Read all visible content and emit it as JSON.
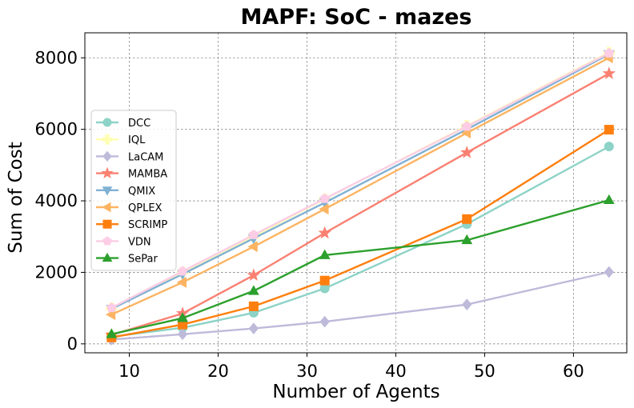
{
  "chart_data": {
    "type": "line",
    "title": "MAPF: SoC - mazes",
    "xlabel": "Number of Agents",
    "ylabel": "Sum of Cost",
    "x": [
      8,
      16,
      24,
      32,
      48,
      64
    ],
    "xlim": [
      5,
      66
    ],
    "ylim": [
      -250,
      8700
    ],
    "xticks": [
      10,
      20,
      30,
      40,
      50,
      60
    ],
    "yticks": [
      0,
      2000,
      4000,
      6000,
      8000
    ],
    "grid": true,
    "legend_position": "center-left",
    "series": [
      {
        "name": "DCC",
        "color": "#8dd3c7",
        "marker": "circle",
        "values": [
          200,
          450,
          870,
          1550,
          3350,
          5520
        ]
      },
      {
        "name": "IQL",
        "color": "#ffffb3",
        "marker": "plus",
        "values": [
          1000,
          2000,
          3000,
          4050,
          6100,
          8150
        ]
      },
      {
        "name": "LaCAM",
        "color": "#bebada",
        "marker": "diamond",
        "values": [
          120,
          270,
          430,
          620,
          1100,
          2010
        ]
      },
      {
        "name": "MAMBA",
        "color": "#fa8072",
        "marker": "star",
        "values": [
          250,
          850,
          1920,
          3100,
          5350,
          7560
        ]
      },
      {
        "name": "QMIX",
        "color": "#80b1d3",
        "marker": "triangle-down",
        "values": [
          980,
          1950,
          2950,
          3950,
          6000,
          8100
        ]
      },
      {
        "name": "QPLEX",
        "color": "#fdb462",
        "marker": "triangle-left",
        "values": [
          820,
          1720,
          2720,
          3770,
          5900,
          8000
        ]
      },
      {
        "name": "SCRIMP",
        "color": "#ff7f0e",
        "marker": "square",
        "values": [
          180,
          540,
          1050,
          1770,
          3490,
          5990
        ]
      },
      {
        "name": "VDN",
        "color": "#fccde5",
        "marker": "pentagon",
        "values": [
          1010,
          2030,
          3050,
          4060,
          6080,
          8130
        ]
      },
      {
        "name": "SePar",
        "color": "#2ca02c",
        "marker": "triangle-up",
        "values": [
          270,
          720,
          1480,
          2480,
          2900,
          4020
        ]
      }
    ]
  }
}
